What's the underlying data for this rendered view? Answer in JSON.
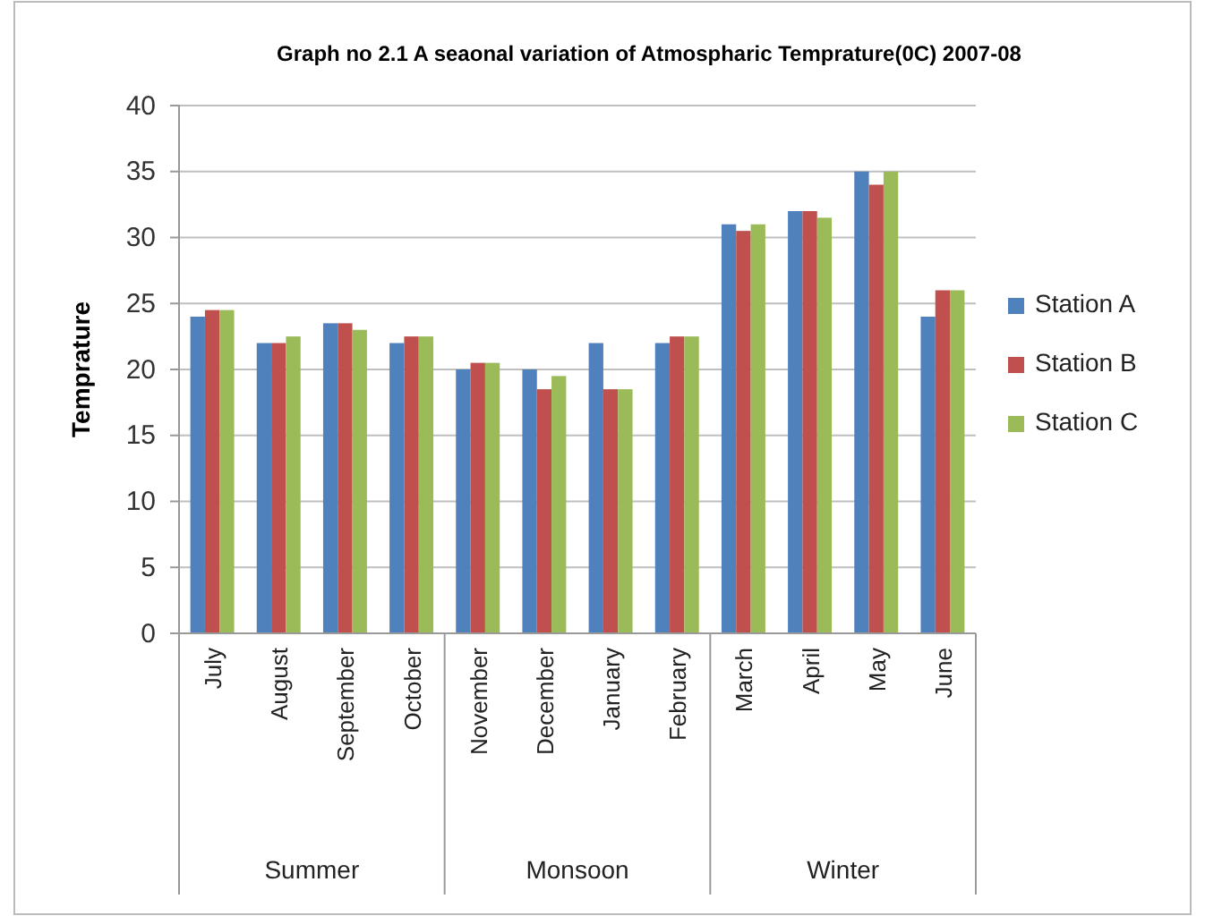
{
  "chart_data": {
    "type": "bar",
    "title": "Graph no 2.1 A seaonal variation  of  Atmospharic Temprature(0C) 2007-08",
    "ylabel": "Temprature",
    "categories": [
      "July",
      "August",
      "September",
      "October",
      "November",
      "December",
      "January",
      "February",
      "March",
      "April",
      "May",
      "June"
    ],
    "annotations": [
      "Summer",
      "Monsoon",
      "Winter"
    ],
    "series": [
      {
        "name": "Station A",
        "color": "#4f81bd",
        "values": [
          24,
          22,
          23.5,
          22,
          20,
          20,
          22,
          22,
          31,
          32,
          35,
          24
        ]
      },
      {
        "name": "Station B",
        "color": "#c0504d",
        "values": [
          24.5,
          22,
          23.5,
          22.5,
          20.5,
          18.5,
          18.5,
          22.5,
          30.5,
          32,
          34,
          26
        ]
      },
      {
        "name": "Station C",
        "color": "#9bbb59",
        "values": [
          24.5,
          22.5,
          23,
          22.5,
          20.5,
          19.5,
          18.5,
          22.5,
          31,
          31.5,
          35,
          26
        ]
      }
    ],
    "ylim": [
      0,
      40
    ],
    "yticks": [
      0,
      5,
      10,
      15,
      20,
      25,
      30,
      35,
      40
    ],
    "grid": "y",
    "legend": "right"
  }
}
